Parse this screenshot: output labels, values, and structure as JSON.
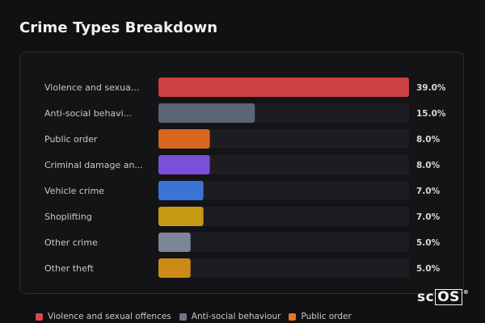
{
  "title": "Crime Types Breakdown",
  "chart_data": {
    "type": "bar",
    "orientation": "horizontal",
    "title": "Crime Types Breakdown",
    "categories": [
      "Violence and sexua...",
      "Anti-social behavi...",
      "Public order",
      "Criminal damage an...",
      "Vehicle crime",
      "Shoplifting",
      "Other crime",
      "Other theft"
    ],
    "values": [
      39.0,
      15.0,
      8.0,
      8.0,
      7.0,
      7.0,
      5.0,
      5.0
    ],
    "value_labels": [
      "39.0%",
      "15.0%",
      "8.0%",
      "8.0%",
      "7.0%",
      "7.0%",
      "5.0%",
      "5.0%"
    ],
    "colors": [
      "#cc3f43",
      "#5c6573",
      "#d9661e",
      "#7b4fd8",
      "#3a74d6",
      "#c79a14",
      "#7d8696",
      "#cd8a16"
    ],
    "xlim": [
      0,
      39
    ],
    "grid": false
  },
  "legend": [
    {
      "label": "Violence and sexual offences",
      "color": "#d8484c"
    },
    {
      "label": "Anti-social behaviour",
      "color": "#6c7584"
    },
    {
      "label": "Public order",
      "color": "#e8742a"
    }
  ],
  "logo": {
    "text_plain": "sc",
    "text_boxed": "OS",
    "mark": "®"
  }
}
